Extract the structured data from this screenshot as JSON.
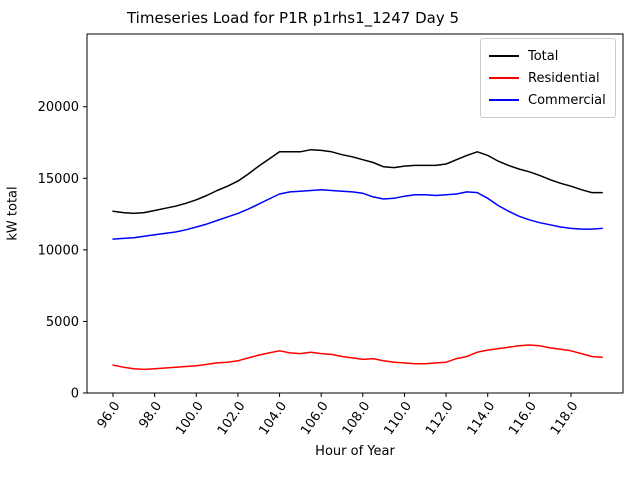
{
  "figure": {
    "background_color": "#ffffff",
    "accent_colors": {
      "total": "#000000",
      "residential": "#ff0000",
      "commercial": "#0000ff"
    }
  },
  "chart_data": {
    "type": "line",
    "title": "Timeseries Load for P1R p1rhs1_1247  Day 5",
    "xlabel": "Hour of Year",
    "ylabel": "kW total",
    "xlim": [
      94.75,
      120.5
    ],
    "ylim": [
      0,
      25080
    ],
    "grid": false,
    "legend_position": "upper right",
    "legend_entries": [
      "Total",
      "Residential",
      "Commercial"
    ],
    "xticks": [
      96,
      98,
      100,
      102,
      104,
      106,
      108,
      110,
      112,
      114,
      116,
      118
    ],
    "xtick_labels": [
      "96.0",
      "98.0",
      "100.0",
      "102.0",
      "104.0",
      "106.0",
      "108.0",
      "110.0",
      "112.0",
      "114.0",
      "116.0",
      "118.0"
    ],
    "yticks": [
      0,
      5000,
      10000,
      15000,
      20000
    ],
    "ytick_labels": [
      "0",
      "5000",
      "10000",
      "15000",
      "20000"
    ],
    "x": [
      96.0,
      96.5,
      97.0,
      97.5,
      98.0,
      98.5,
      99.0,
      99.5,
      100.0,
      100.5,
      101.0,
      101.5,
      102.0,
      102.5,
      103.0,
      103.5,
      104.0,
      104.5,
      105.0,
      105.5,
      106.0,
      106.5,
      107.0,
      107.5,
      108.0,
      108.5,
      109.0,
      109.5,
      110.0,
      110.5,
      111.0,
      111.5,
      112.0,
      112.5,
      113.0,
      113.5,
      114.0,
      114.5,
      115.0,
      115.5,
      116.0,
      116.5,
      117.0,
      117.5,
      118.0,
      118.5,
      119.0,
      119.5
    ],
    "series": [
      {
        "name": "Total",
        "color": "#000000",
        "values": [
          12700,
          12600,
          12550,
          12600,
          12750,
          12900,
          13050,
          13250,
          13500,
          13800,
          14150,
          14450,
          14800,
          15300,
          15850,
          16350,
          16850,
          16850,
          16850,
          17000,
          16950,
          16850,
          16650,
          16500,
          16300,
          16100,
          15800,
          15750,
          15850,
          15900,
          15900,
          15900,
          16000,
          16300,
          16600,
          16850,
          16600,
          16200,
          15900,
          15650,
          15450,
          15200,
          14900,
          14650,
          14450,
          14200,
          14000,
          14000
        ]
      },
      {
        "name": "Residential",
        "color": "#ff0000",
        "values": [
          1950,
          1800,
          1700,
          1650,
          1700,
          1750,
          1800,
          1850,
          1900,
          2000,
          2100,
          2150,
          2250,
          2450,
          2650,
          2800,
          2950,
          2800,
          2750,
          2850,
          2750,
          2700,
          2550,
          2450,
          2350,
          2400,
          2250,
          2150,
          2100,
          2050,
          2050,
          2100,
          2150,
          2400,
          2550,
          2850,
          3000,
          3100,
          3200,
          3300,
          3350,
          3300,
          3150,
          3050,
          2950,
          2750,
          2550,
          2500
        ]
      },
      {
        "name": "Commercial",
        "color": "#0000ff",
        "values": [
          10750,
          10800,
          10850,
          10950,
          11050,
          11150,
          11250,
          11400,
          11600,
          11800,
          12050,
          12300,
          12550,
          12850,
          13200,
          13550,
          13900,
          14050,
          14100,
          14150,
          14200,
          14150,
          14100,
          14050,
          13950,
          13700,
          13550,
          13600,
          13750,
          13850,
          13850,
          13800,
          13850,
          13900,
          14050,
          14000,
          13600,
          13100,
          12700,
          12350,
          12100,
          11900,
          11750,
          11600,
          11500,
          11450,
          11450,
          11500
        ]
      }
    ]
  }
}
